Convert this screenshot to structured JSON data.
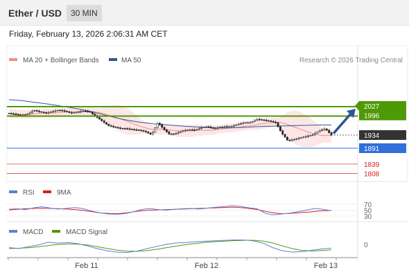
{
  "header": {
    "title": "Ether / USD",
    "interval": "30 MIN"
  },
  "datetime": "Friday, February 13, 2026 2:06:31 AM CET",
  "legend_main": [
    {
      "name": "MA 20 + Bollinger Bands",
      "color": "#f08c8c"
    },
    {
      "name": "MA 50",
      "color": "#2f5597"
    }
  ],
  "credit": "Research © 2026 Trading Central",
  "legend_rsi": [
    {
      "name": "RSI",
      "color": "#5b7fd4"
    },
    {
      "name": "9MA",
      "color": "#d81e1e"
    }
  ],
  "legend_macd": [
    {
      "name": "MACD",
      "color": "#5b7fd4"
    },
    {
      "name": "MACD Signal",
      "color": "#4e9a06"
    }
  ],
  "chart_data": {
    "type": "candlestick",
    "x_ticks": [
      "Feb 11",
      "Feb 12",
      "Feb 13"
    ],
    "levels": [
      {
        "value": 2027,
        "label": "2027",
        "kind": "resistance",
        "color": "#4e9a06"
      },
      {
        "value": 1996,
        "label": "1996",
        "kind": "resistance",
        "color": "#4e9a06"
      },
      {
        "value": 1934,
        "label": "1934",
        "kind": "last",
        "color": "#333333"
      },
      {
        "value": 1891,
        "label": "1891",
        "kind": "support",
        "color": "#2f6fd8"
      },
      {
        "value": 1839,
        "label": "1839",
        "kind": "support",
        "color": "#d81e1e"
      },
      {
        "value": 1808,
        "label": "1808",
        "kind": "support",
        "color": "#d81e1e"
      }
    ],
    "price_path": [
      2005,
      2002,
      1998,
      2003,
      2015,
      2010,
      2006,
      2011,
      2016,
      2012,
      2006,
      2009,
      2013,
      2010,
      1995,
      1980,
      1965,
      1960,
      1956,
      1955,
      1952,
      1950,
      1945,
      1935,
      1975,
      1952,
      1935,
      1940,
      1948,
      1952,
      1950,
      1958,
      1962,
      1955,
      1960,
      1962,
      1963,
      1970,
      1975,
      1975,
      1986,
      1983,
      1980,
      1975,
      1940,
      1915,
      1920,
      1925,
      1930,
      1935,
      1948,
      1955,
      1934
    ],
    "ma50_path": [
      2050,
      2047,
      2042,
      2037,
      2031,
      2025,
      2018,
      2010,
      2000,
      1990,
      1982,
      1976,
      1971,
      1968,
      1965,
      1962,
      1960,
      1958,
      1957,
      1958,
      1960,
      1962,
      1963,
      1964,
      1965,
      1966,
      1967,
      1967
    ],
    "arrow": {
      "from": 1939,
      "to": 2020
    },
    "rsi": {
      "ticks": [
        70,
        50,
        30
      ],
      "rsi_path": [
        53,
        55,
        52,
        58,
        62,
        57,
        54,
        56,
        59,
        55,
        47,
        41,
        37,
        36,
        38,
        44,
        52,
        56,
        52,
        50,
        53,
        55,
        56,
        54,
        57,
        60,
        62,
        65,
        63,
        58,
        55,
        39,
        34,
        37,
        40,
        45,
        50,
        56,
        53,
        48
      ],
      "ma9_path": [
        51,
        53,
        55,
        56,
        57,
        56,
        55,
        54,
        52,
        49,
        45,
        41,
        39,
        38,
        40,
        44,
        48,
        50,
        51,
        52,
        53,
        54,
        55,
        56,
        57,
        58,
        59,
        60,
        59,
        56,
        52,
        46,
        41,
        38,
        39,
        41,
        43,
        46,
        48,
        49
      ]
    },
    "macd": {
      "ticks": [
        0
      ],
      "macd_path": [
        -3.5,
        -4.5,
        -2.5,
        -0.5,
        2.5,
        1.5,
        2.0,
        1.0,
        -1.5,
        -4.5,
        -7.0,
        -8.5,
        -9.0,
        -7.5,
        -5.0,
        -2.5,
        0.0,
        1.5,
        2.0,
        3.0,
        3.5,
        4.0,
        4.5,
        5.0,
        5.0,
        4.0,
        1.5,
        -3.5,
        -7.0,
        -8.5,
        -8.0,
        -6.5,
        -5.0,
        -4.0
      ],
      "signal_path": [
        -4.5,
        -4.2,
        -3.6,
        -2.6,
        -1.2,
        0.0,
        0.6,
        0.4,
        -0.6,
        -2.4,
        -4.4,
        -6.2,
        -7.4,
        -7.6,
        -7.0,
        -5.6,
        -3.8,
        -2.0,
        -0.4,
        1.0,
        2.2,
        3.0,
        3.6,
        4.2,
        4.6,
        4.6,
        3.8,
        1.6,
        -1.6,
        -4.6,
        -6.6,
        -7.2,
        -6.8,
        -6.0
      ]
    }
  }
}
